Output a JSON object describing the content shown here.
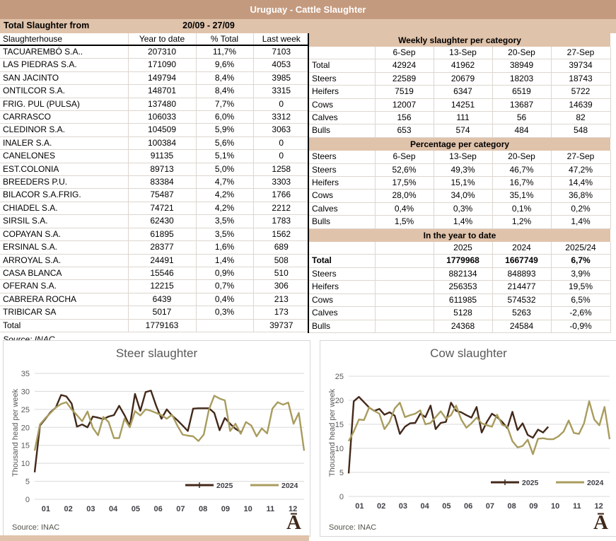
{
  "banner": {
    "title": "Uruguay - Cattle Slaughter"
  },
  "period": {
    "label": "Total Slaughter from",
    "value": "20/09 - 27/09"
  },
  "left_table": {
    "headers": [
      "Slaughterhouse",
      "Year to date",
      "% Total",
      "Last week"
    ],
    "rows": [
      [
        "TACUAREMBÓ S.A..",
        "207310",
        "11,7%",
        "7103"
      ],
      [
        "LAS PIEDRAS S.A.",
        "171090",
        "9,6%",
        "4053"
      ],
      [
        "SAN JACINTO",
        "149794",
        "8,4%",
        "3985"
      ],
      [
        "ONTILCOR S.A.",
        "148701",
        "8,4%",
        "3315"
      ],
      [
        "FRIG. PUL (PULSA)",
        "137480",
        "7,7%",
        "0"
      ],
      [
        "CARRASCO",
        "106033",
        "6,0%",
        "3312"
      ],
      [
        "CLEDINOR S.A.",
        "104509",
        "5,9%",
        "3063"
      ],
      [
        "INALER S.A.",
        "100384",
        "5,6%",
        "0"
      ],
      [
        "CANELONES",
        "91135",
        "5,1%",
        "0"
      ],
      [
        "EST.COLONIA",
        "89713",
        "5,0%",
        "1258"
      ],
      [
        "BREEDERS P.U.",
        "83384",
        "4,7%",
        "3303"
      ],
      [
        "BILACOR S.A.FRIG.",
        "75487",
        "4,2%",
        "1766"
      ],
      [
        "CHIADEL S.A.",
        "74721",
        "4,2%",
        "2212"
      ],
      [
        "SIRSIL S.A.",
        "62430",
        "3,5%",
        "1783"
      ],
      [
        "COPAYAN S.A.",
        "61895",
        "3,5%",
        "1562"
      ],
      [
        "ERSINAL S.A.",
        "28377",
        "1,6%",
        "689"
      ],
      [
        "ARROYAL S.A.",
        "24491",
        "1,4%",
        "508"
      ],
      [
        "CASA BLANCA",
        "15546",
        "0,9%",
        "510"
      ],
      [
        "OFERAN S.A.",
        "12215",
        "0,7%",
        "306"
      ],
      [
        "CABRERA ROCHA",
        "6439",
        "0,4%",
        "213"
      ],
      [
        "TRIBICAR SA",
        "5017",
        "0,3%",
        "173"
      ]
    ],
    "total_row": [
      [
        "Total",
        "1779163",
        "",
        "39737"
      ]
    ],
    "source": "Source: INAC"
  },
  "weekly_table": {
    "title": "Weekly slaughter per category",
    "col_headers": [
      "",
      "6-Sep",
      "13-Sep",
      "20-Sep",
      "27-Sep"
    ],
    "rows": [
      [
        "Total",
        "42924",
        "41962",
        "38949",
        "39734"
      ],
      [
        "Steers",
        "22589",
        "20679",
        "18203",
        "18743"
      ],
      [
        "Heifers",
        "7519",
        "6347",
        "6519",
        "5722"
      ],
      [
        "Cows",
        "12007",
        "14251",
        "13687",
        "14639"
      ],
      [
        "Calves",
        "156",
        "111",
        "56",
        "82"
      ],
      [
        "Bulls",
        "653",
        "574",
        "484",
        "548"
      ]
    ]
  },
  "pct_table": {
    "title": "Percentage per category",
    "col_headers": [
      "Steers",
      "6-Sep",
      "13-Sep",
      "20-Sep",
      "27-Sep"
    ],
    "rows": [
      [
        "Steers",
        "52,6%",
        "49,3%",
        "46,7%",
        "47,2%"
      ],
      [
        "Heifers",
        "17,5%",
        "15,1%",
        "16,7%",
        "14,4%"
      ],
      [
        "Cows",
        "28,0%",
        "34,0%",
        "35,1%",
        "36,8%"
      ],
      [
        "Calves",
        "0,4%",
        "0,3%",
        "0,1%",
        "0,2%"
      ],
      [
        "Bulls",
        "1,5%",
        "1,4%",
        "1,2%",
        "1,4%"
      ]
    ]
  },
  "ytd_table": {
    "title": "In the year to date",
    "col_headers": [
      "",
      "",
      "2025",
      "2024",
      "2025/24"
    ],
    "rows": [
      [
        "Total",
        "",
        "1779968",
        "1667749",
        "6,7%"
      ],
      [
        "Steers",
        "",
        "882134",
        "848893",
        "3,9%"
      ],
      [
        "Heifers",
        "",
        "256353",
        "214477",
        "19,5%"
      ],
      [
        "Cows",
        "",
        "611985",
        "574532",
        "6,5%"
      ],
      [
        "Calves",
        "",
        "5128",
        "5263",
        "-2,6%"
      ],
      [
        "Bulls",
        "",
        "24368",
        "24584",
        "-0,9%"
      ]
    ]
  },
  "logo": "Ā",
  "colors": {
    "banner_bg": "#c49a7e",
    "band_bg": "#e0c3ab",
    "grid": "#d9d9d9",
    "line_2025": "#43291a",
    "line_2024": "#a89c5e",
    "divider": "#000000",
    "chart_text": "#595959"
  },
  "chart_data": [
    {
      "type": "line",
      "title": "Steer slaughter",
      "ylabel": "Thousand head per  week",
      "source": "Source: INAC",
      "ylim": [
        0,
        35
      ],
      "ytick": 5,
      "grid": "horizontal",
      "legend_position": "bottom-right",
      "x_labels": [
        "01",
        "02",
        "03",
        "04",
        "05",
        "06",
        "07",
        "08",
        "09",
        "10",
        "11",
        "12"
      ],
      "weeks_per_year": 52,
      "series": [
        {
          "name": "2025",
          "color": "#43291a",
          "values": [
            7.5,
            20.5,
            22.3,
            24.2,
            25.5,
            29.0,
            28.6,
            26.6,
            20.2,
            20.8,
            20.0,
            23.0,
            22.7,
            22.3,
            23.0,
            23.4,
            26.0,
            23.4,
            20.4,
            29.3,
            24.6,
            29.8,
            30.2,
            26.0,
            22.4,
            25.0,
            23.3,
            22.0,
            20.5,
            19.0,
            25.2,
            25.3,
            25.3,
            25.3,
            24.0,
            19.2,
            22.6,
            21.0,
            19.6,
            18.7
          ]
        },
        {
          "name": "2024",
          "color": "#a89c5e",
          "values": [
            13.5,
            20.8,
            22.5,
            24.0,
            25.5,
            26.5,
            27.0,
            25.0,
            23.4,
            21.7,
            24.4,
            19.9,
            17.8,
            22.9,
            21.5,
            17.0,
            17.0,
            22.4,
            20.0,
            24.5,
            23.3,
            25.0,
            24.6,
            24.0,
            23.4,
            22.4,
            23.5,
            20.5,
            18.0,
            17.7,
            17.5,
            16.2,
            18.0,
            25.0,
            28.8,
            28.0,
            27.5,
            19.0,
            21.0,
            18.2,
            21.5,
            20.5,
            17.5,
            19.7,
            18.3,
            25.2,
            27.0,
            26.3,
            26.9,
            21.0,
            24.0,
            13.5
          ]
        }
      ]
    },
    {
      "type": "line",
      "title": "Cow slaughter",
      "ylabel": "Thousand head per  week",
      "source": "Source: INAC",
      "ylim": [
        0,
        25
      ],
      "ytick": 5,
      "grid": "horizontal",
      "legend_position": "bottom-right",
      "x_labels": [
        "01",
        "02",
        "03",
        "04",
        "05",
        "06",
        "07",
        "08",
        "09",
        "10",
        "11",
        "12"
      ],
      "weeks_per_year": 52,
      "series": [
        {
          "name": "2025",
          "color": "#43291a",
          "values": [
            4.8,
            19.8,
            20.7,
            19.6,
            18.5,
            17.8,
            18.2,
            17.0,
            17.5,
            16.8,
            13.0,
            14.5,
            15.2,
            15.3,
            17.2,
            16.5,
            18.9,
            14.0,
            15.3,
            15.5,
            19.5,
            17.8,
            17.5,
            16.9,
            16.4,
            18.6,
            13.3,
            15.5,
            17.2,
            16.5,
            15.5,
            14.2,
            17.6,
            13.8,
            15.2,
            12.8,
            12.2,
            13.9,
            13.3,
            14.5
          ]
        },
        {
          "name": "2024",
          "color": "#a89c5e",
          "values": [
            11.5,
            13.5,
            16.0,
            15.9,
            18.5,
            17.8,
            17.2,
            14.0,
            15.5,
            18.3,
            19.5,
            16.5,
            16.9,
            17.2,
            17.9,
            15.0,
            15.3,
            16.5,
            17.7,
            16.2,
            16.9,
            18.9,
            16.0,
            14.3,
            15.2,
            16.4,
            15.2,
            14.8,
            14.5,
            17.0,
            14.9,
            14.5,
            11.5,
            10.2,
            10.5,
            11.8,
            8.8,
            12.0,
            12.1,
            11.9,
            11.9,
            12.5,
            13.5,
            15.8,
            13.2,
            13.0,
            15.2,
            19.8,
            16.0,
            14.8,
            18.6,
            11.9
          ]
        }
      ]
    }
  ]
}
